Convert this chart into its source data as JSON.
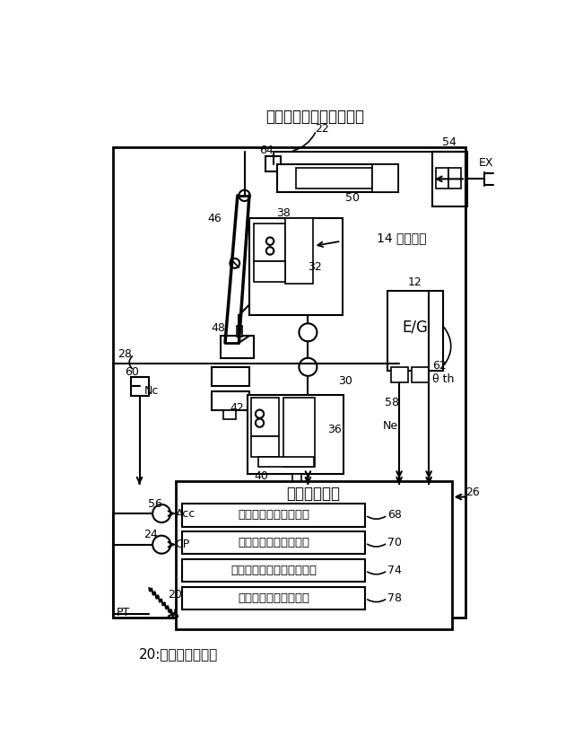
{
  "bg_color": "#ffffff",
  "caption": "20:クラッチペダル",
  "lbl_actuator_title": "クラッチアクチュエータ",
  "lbl_22": "22",
  "lbl_64": "64",
  "lbl_54": "54",
  "lbl_EX": "EX",
  "lbl_46": "46",
  "lbl_38": "38",
  "lbl_50": "50",
  "lbl_14": "14 クラッチ",
  "lbl_32": "32",
  "lbl_12": "12",
  "lbl_EG": "E/G",
  "lbl_48": "48",
  "lbl_28": "28",
  "lbl_60": "60",
  "lbl_Nc": "Nc",
  "lbl_42": "42",
  "lbl_36": "36",
  "lbl_40": "40",
  "lbl_58": "58",
  "lbl_62": "62",
  "lbl_theta": "θ th",
  "lbl_Ne": "Ne",
  "lbl_30": "30",
  "lbl_26": "26",
  "lbl_ecm": "電子制御装置",
  "lbl_b1": "アクチュエータ制御部",
  "lbl_b2": "ストローク位置判定部",
  "lbl_b3": "ストローク進行方向判定部",
  "lbl_b4": "ストローク速度判定部",
  "lbl_68": "68",
  "lbl_70": "70",
  "lbl_74": "74",
  "lbl_78": "78",
  "lbl_56": "56",
  "lbl_Acc": "Acc",
  "lbl_24": "24",
  "lbl_CP": "CP",
  "lbl_20": "20",
  "lbl_PT": "PT"
}
